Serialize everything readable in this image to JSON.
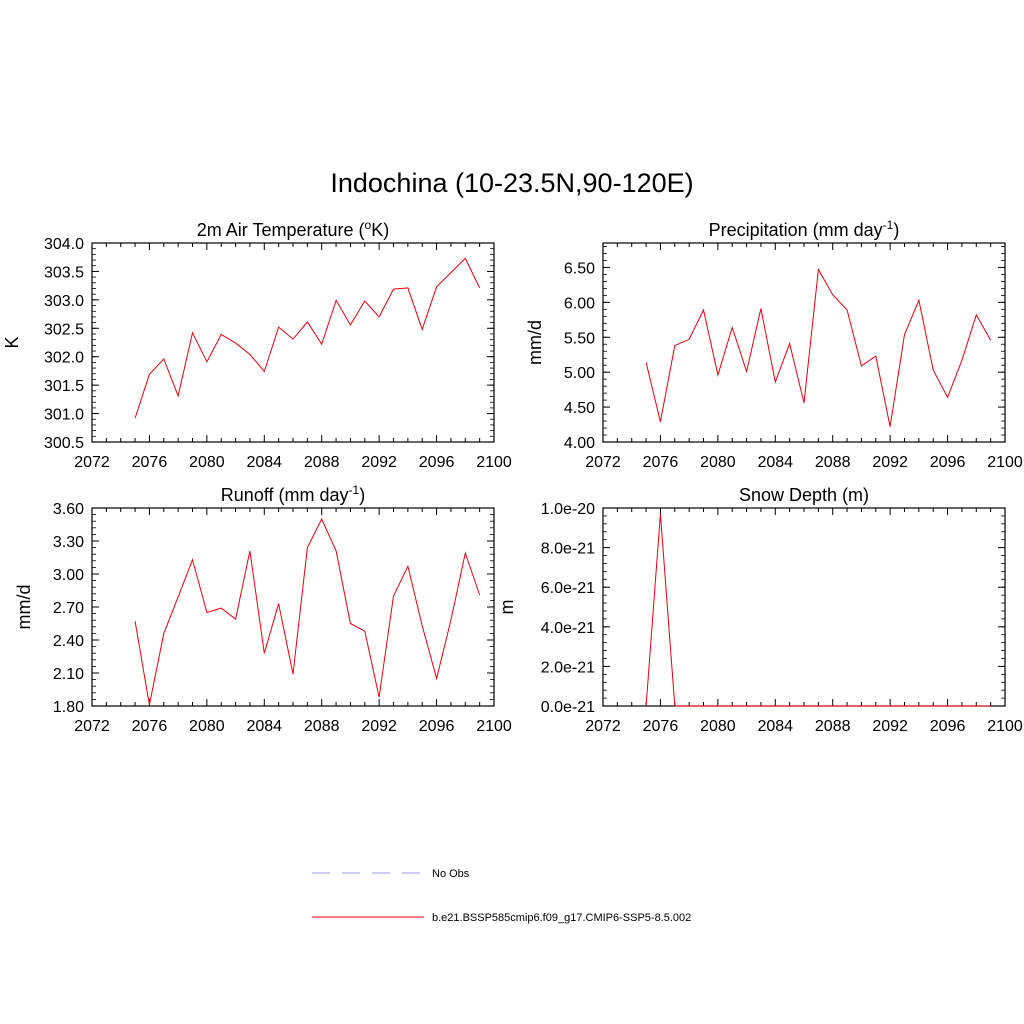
{
  "figure": {
    "title": "Indochina (10-23.5N,90-120E)"
  },
  "chart_data": [
    {
      "type": "line",
      "title": "2m Air Temperature (",
      "title_sup": "o",
      "title_end": "K)",
      "ylabel": "K",
      "xlim": [
        2072,
        2100
      ],
      "ylim": [
        300.5,
        304.0
      ],
      "xticks": [
        "2072",
        "2076",
        "2080",
        "2084",
        "2088",
        "2092",
        "2096",
        "2100"
      ],
      "yticks": [
        "300.5",
        "301.0",
        "301.5",
        "302.0",
        "302.5",
        "303.0",
        "303.5",
        "304.0"
      ],
      "color": "#e8000b",
      "series": [
        {
          "x": [
            2075,
            2076,
            2077,
            2078,
            2079,
            2080,
            2081,
            2082,
            2083,
            2084,
            2085,
            2086,
            2087,
            2088,
            2089,
            2090,
            2091,
            2092,
            2093,
            2094,
            2095,
            2096,
            2097,
            2098,
            2099
          ],
          "values": [
            300.92,
            301.69,
            301.96,
            301.31,
            302.42,
            301.91,
            302.39,
            302.24,
            302.04,
            301.74,
            302.52,
            302.31,
            302.61,
            302.22,
            302.99,
            302.56,
            302.98,
            302.7,
            303.19,
            303.21,
            302.48,
            303.23,
            303.48,
            303.73,
            303.21
          ]
        }
      ]
    },
    {
      "type": "line",
      "title": "Precipitation (mm day",
      "title_sup": "-1",
      "title_end": ")",
      "ylabel": "mm/d",
      "xlim": [
        2072,
        2100
      ],
      "ylim": [
        4.0,
        6.85
      ],
      "xticks": [
        "2072",
        "2076",
        "2080",
        "2084",
        "2088",
        "2092",
        "2096",
        "2100"
      ],
      "yticks": [
        "4.00",
        "4.50",
        "5.00",
        "5.50",
        "6.00",
        "6.50"
      ],
      "color": "#e8000b",
      "series": [
        {
          "x": [
            2075,
            2076,
            2077,
            2078,
            2079,
            2080,
            2081,
            2082,
            2083,
            2084,
            2085,
            2086,
            2087,
            2088,
            2089,
            2090,
            2091,
            2092,
            2093,
            2094,
            2095,
            2096,
            2097,
            2098,
            2099
          ],
          "values": [
            5.14,
            4.29,
            5.38,
            5.47,
            5.89,
            4.96,
            5.64,
            5.01,
            5.91,
            4.86,
            5.41,
            4.56,
            6.47,
            6.11,
            5.89,
            5.09,
            5.23,
            4.22,
            5.54,
            6.03,
            5.03,
            4.64,
            5.17,
            5.82,
            5.46
          ]
        }
      ]
    },
    {
      "type": "line",
      "title": "Runoff (mm day",
      "title_sup": "-1",
      "title_end": ")",
      "ylabel": "mm/d",
      "xlim": [
        2072,
        2100
      ],
      "ylim": [
        1.8,
        3.6
      ],
      "xticks": [
        "2072",
        "2076",
        "2080",
        "2084",
        "2088",
        "2092",
        "2096",
        "2100"
      ],
      "yticks": [
        "1.80",
        "2.10",
        "2.40",
        "2.70",
        "3.00",
        "3.30",
        "3.60"
      ],
      "color": "#e8000b",
      "series": [
        {
          "x": [
            2075,
            2076,
            2077,
            2078,
            2079,
            2080,
            2081,
            2082,
            2083,
            2084,
            2085,
            2086,
            2087,
            2088,
            2089,
            2090,
            2091,
            2092,
            2093,
            2094,
            2095,
            2096,
            2097,
            2098,
            2099
          ],
          "values": [
            2.57,
            1.81,
            2.46,
            2.79,
            3.13,
            2.65,
            2.69,
            2.59,
            3.21,
            2.28,
            2.73,
            2.09,
            3.24,
            3.5,
            3.21,
            2.55,
            2.48,
            1.88,
            2.8,
            3.07,
            2.53,
            2.05,
            2.58,
            3.19,
            2.81
          ]
        }
      ]
    },
    {
      "type": "line",
      "title": "Snow Depth (m)",
      "title_sup": "",
      "title_end": "",
      "ylabel": "m",
      "xlim": [
        2072,
        2100
      ],
      "ylim": [
        0,
        1e-20
      ],
      "xticks": [
        "2072",
        "2076",
        "2080",
        "2084",
        "2088",
        "2092",
        "2096",
        "2100"
      ],
      "yticks": [
        "0.0e-21",
        "2.0e-21",
        "4.0e-21",
        "6.0e-21",
        "8.0e-21",
        "1.0e-20"
      ],
      "color": "#e8000b",
      "series": [
        {
          "x": [
            2075,
            2076,
            2077,
            2078,
            2079,
            2080,
            2081,
            2082,
            2083,
            2084,
            2085,
            2086,
            2087,
            2088,
            2089,
            2090,
            2091,
            2092,
            2093,
            2094,
            2095,
            2096,
            2097,
            2098,
            2099
          ],
          "values": [
            0,
            9.7e-21,
            0,
            0,
            0,
            0,
            0,
            0,
            0,
            0,
            0,
            0,
            0,
            0,
            0,
            0,
            0,
            0,
            0,
            0,
            0,
            0,
            0,
            0,
            0
          ]
        }
      ]
    }
  ],
  "legend": {
    "items": [
      {
        "label": "No Obs",
        "color": "#9999ee",
        "dash": true
      },
      {
        "label": "b.e21.BSSP585cmip6.f09_g17.CMIP6-SSP5-8.5.002",
        "color": "#e8000b",
        "dash": false
      }
    ]
  }
}
